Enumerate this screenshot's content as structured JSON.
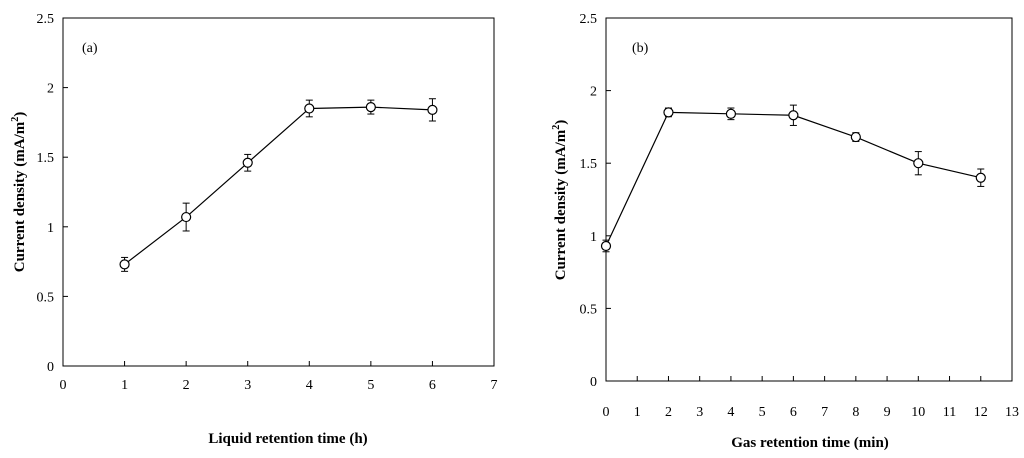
{
  "chart_data": [
    {
      "type": "line",
      "panel_label": "(a)",
      "xlabel": "Liquid retention time (h)",
      "ylabel": "Current density (mA/m",
      "ylabel_sup": "2",
      "ylabel_end": ")",
      "xlim": [
        0,
        7
      ],
      "ylim": [
        0,
        2.5
      ],
      "xticks": [
        "0",
        "1",
        "2",
        "3",
        "4",
        "5",
        "6",
        "7"
      ],
      "yticks": [
        "0",
        "0.5",
        "1",
        "1.5",
        "2",
        "2.5"
      ],
      "series": [
        {
          "x": [
            1,
            2,
            3,
            4,
            5,
            6
          ],
          "y": [
            0.73,
            1.07,
            1.46,
            1.85,
            1.86,
            1.84
          ],
          "err": [
            0.05,
            0.1,
            0.06,
            0.06,
            0.05,
            0.08
          ]
        }
      ]
    },
    {
      "type": "line",
      "panel_label": "(b)",
      "xlabel": "Gas retention time (min)",
      "ylabel": "Current density (mA/m",
      "ylabel_sup": "2",
      "ylabel_end": ")",
      "xlim": [
        0,
        13
      ],
      "ylim": [
        0,
        2.5
      ],
      "xticks": [
        "0",
        "1",
        "2",
        "3",
        "4",
        "5",
        "6",
        "7",
        "8",
        "9",
        "10",
        "11",
        "12",
        "13"
      ],
      "yticks": [
        "0",
        "0.5",
        "1",
        "1.5",
        "2",
        "2.5"
      ],
      "series": [
        {
          "x": [
            0,
            2,
            4,
            6,
            8,
            10,
            12
          ],
          "y": [
            0.93,
            1.85,
            1.84,
            1.83,
            1.68,
            1.5,
            1.4
          ],
          "err": [
            0.04,
            0.03,
            0.04,
            0.07,
            0.03,
            0.08,
            0.06
          ]
        }
      ]
    }
  ]
}
